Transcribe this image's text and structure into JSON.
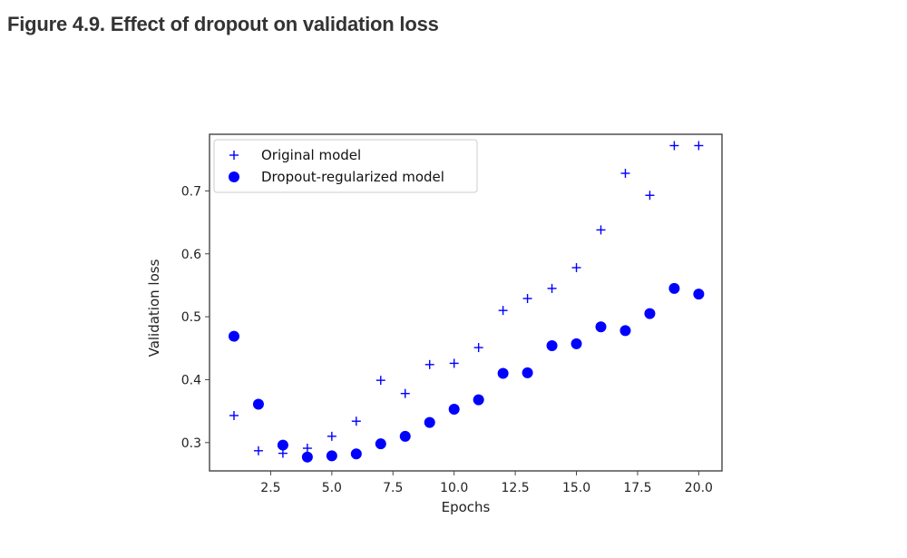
{
  "page": {
    "figure_title": "Figure 4.9. Effect of dropout on validation loss"
  },
  "chart_data": {
    "type": "scatter",
    "title": "",
    "xlabel": "Epochs",
    "ylabel": "Validation loss",
    "xlim": [
      0.0,
      20.95
    ],
    "ylim": [
      0.255,
      0.79
    ],
    "xticks": [
      2.5,
      5.0,
      7.5,
      10.0,
      12.5,
      15.0,
      17.5,
      20.0
    ],
    "xtick_labels": [
      "2.5",
      "5.0",
      "7.5",
      "10.0",
      "12.5",
      "15.0",
      "17.5",
      "20.0"
    ],
    "yticks": [
      0.3,
      0.4,
      0.5,
      0.6,
      0.7
    ],
    "ytick_labels": [
      "0.3",
      "0.4",
      "0.5",
      "0.6",
      "0.7"
    ],
    "legend_position": "top-left",
    "grid": false,
    "series": [
      {
        "name": "Original model",
        "marker": "plus",
        "color": "#0000ff",
        "x": [
          1,
          2,
          3,
          4,
          5,
          6,
          7,
          8,
          9,
          10,
          11,
          12,
          13,
          14,
          15,
          16,
          17,
          18,
          19,
          20
        ],
        "y": [
          0.343,
          0.287,
          0.283,
          0.291,
          0.31,
          0.334,
          0.399,
          0.378,
          0.424,
          0.426,
          0.451,
          0.51,
          0.529,
          0.545,
          0.578,
          0.638,
          0.728,
          0.693,
          0.772,
          0.772
        ]
      },
      {
        "name": "Dropout-regularized model",
        "marker": "dot",
        "color": "#0000ff",
        "x": [
          1,
          2,
          3,
          4,
          5,
          6,
          7,
          8,
          9,
          10,
          11,
          12,
          13,
          14,
          15,
          16,
          17,
          18,
          19,
          20
        ],
        "y": [
          0.469,
          0.361,
          0.296,
          0.277,
          0.279,
          0.282,
          0.298,
          0.31,
          0.332,
          0.353,
          0.368,
          0.41,
          0.411,
          0.454,
          0.457,
          0.484,
          0.478,
          0.505,
          0.545,
          0.536
        ]
      }
    ]
  }
}
